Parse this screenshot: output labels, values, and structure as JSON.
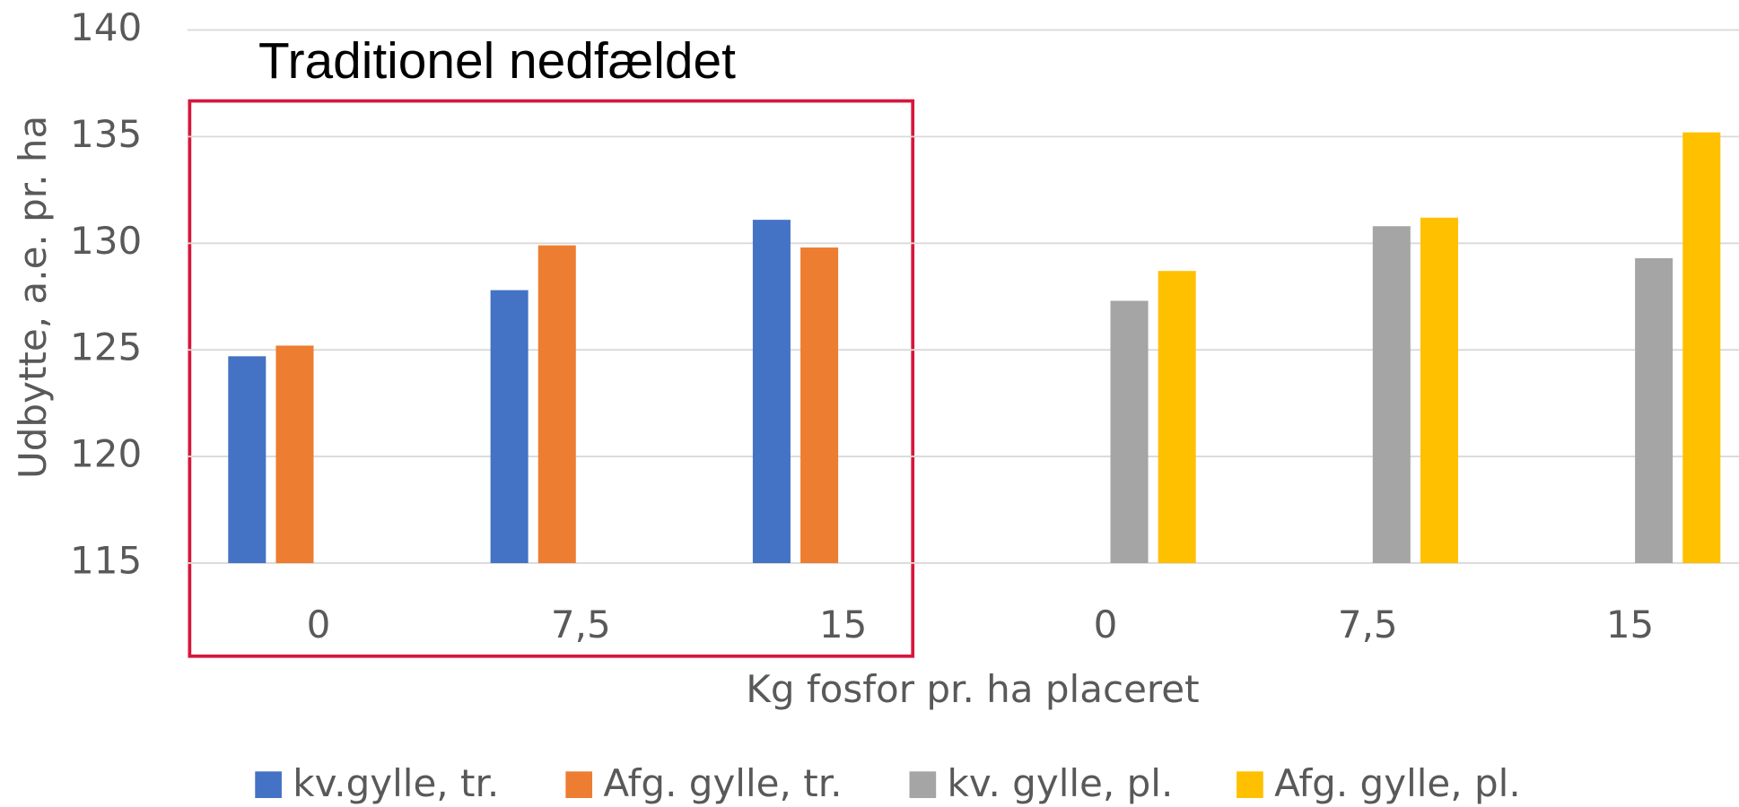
{
  "chart_data": {
    "type": "bar",
    "annotation": "Traditionel nedfældet",
    "y_label": "Udbytte, a.e. pr. ha",
    "x_label": "Kg fosfor pr. ha placeret",
    "categories": [
      "0",
      "7,5",
      "15",
      "0",
      "7,5",
      "15"
    ],
    "series": [
      {
        "name": "kv.gylle, tr.",
        "color": "#4472c4",
        "values": [
          124.7,
          127.8,
          131.1,
          null,
          null,
          null
        ]
      },
      {
        "name": "Afg. gylle, tr.",
        "color": "#ed7d31",
        "values": [
          125.2,
          129.9,
          129.8,
          null,
          null,
          null
        ]
      },
      {
        "name": "kv. gylle, pl.",
        "color": "#a5a5a5",
        "values": [
          null,
          null,
          null,
          127.3,
          130.8,
          129.3
        ]
      },
      {
        "name": "Afg. gylle, pl.",
        "color": "#ffc000",
        "values": [
          null,
          null,
          null,
          128.7,
          131.2,
          135.2
        ]
      }
    ],
    "ylim": [
      115,
      140
    ],
    "yticks": [
      115,
      120,
      125,
      130,
      135,
      140
    ],
    "grid": true,
    "legend": "bottom"
  }
}
